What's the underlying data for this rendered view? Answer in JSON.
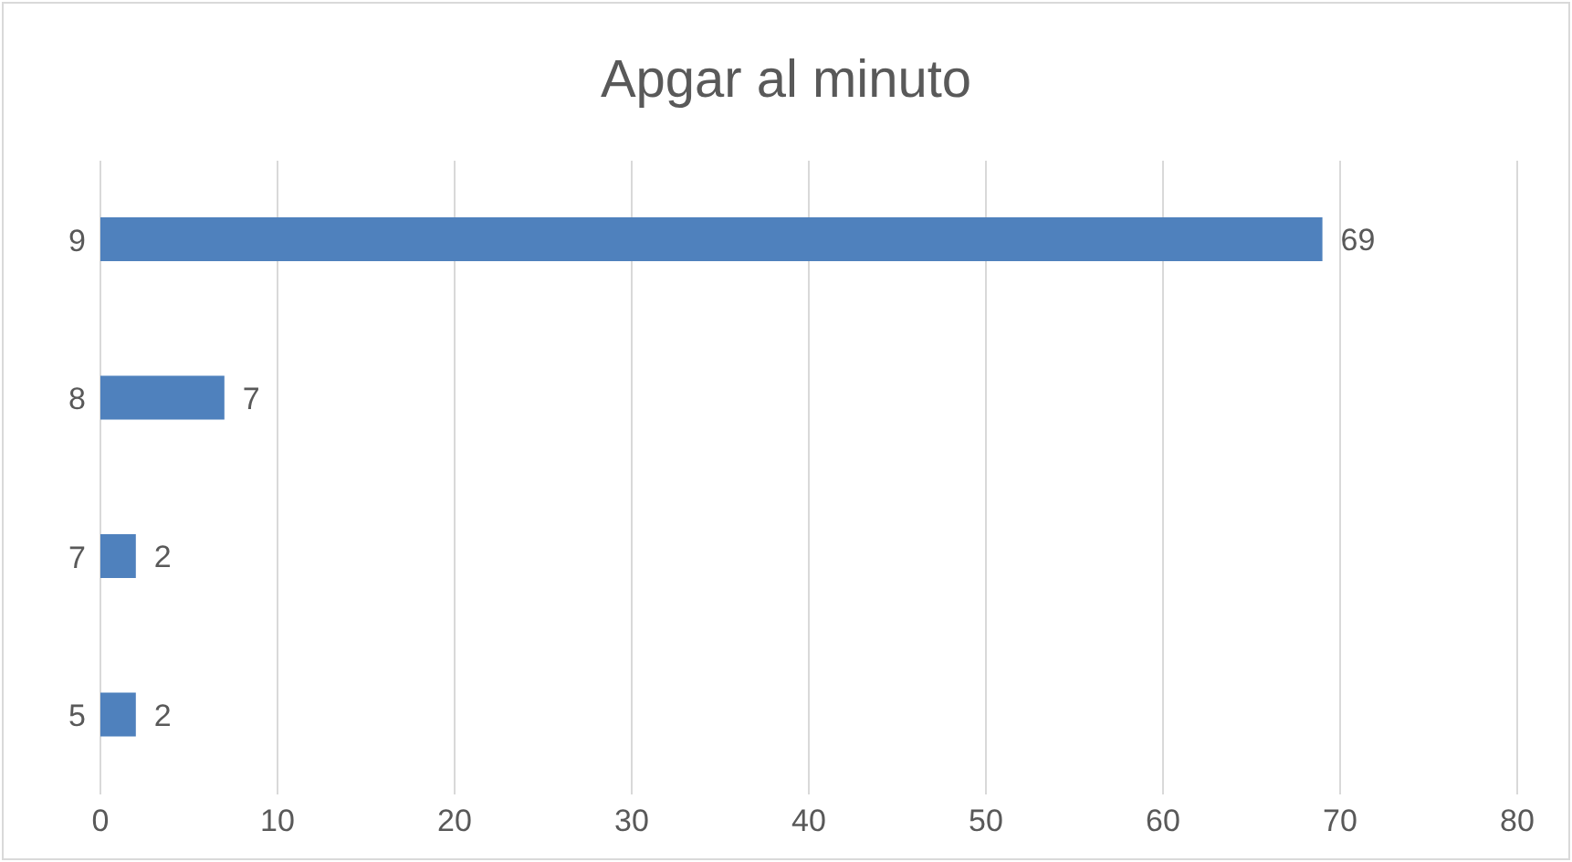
{
  "chart_data": {
    "type": "bar",
    "orientation": "horizontal",
    "title": "Apgar al minuto",
    "categories": [
      "9",
      "8",
      "7",
      "5"
    ],
    "values": [
      69,
      7,
      2,
      2
    ],
    "color": "#4f81bd",
    "xlim": [
      0,
      80
    ],
    "xticks": [
      0,
      10,
      20,
      30,
      40,
      50,
      60,
      70,
      80
    ],
    "grid": "x",
    "data_labels": true
  }
}
